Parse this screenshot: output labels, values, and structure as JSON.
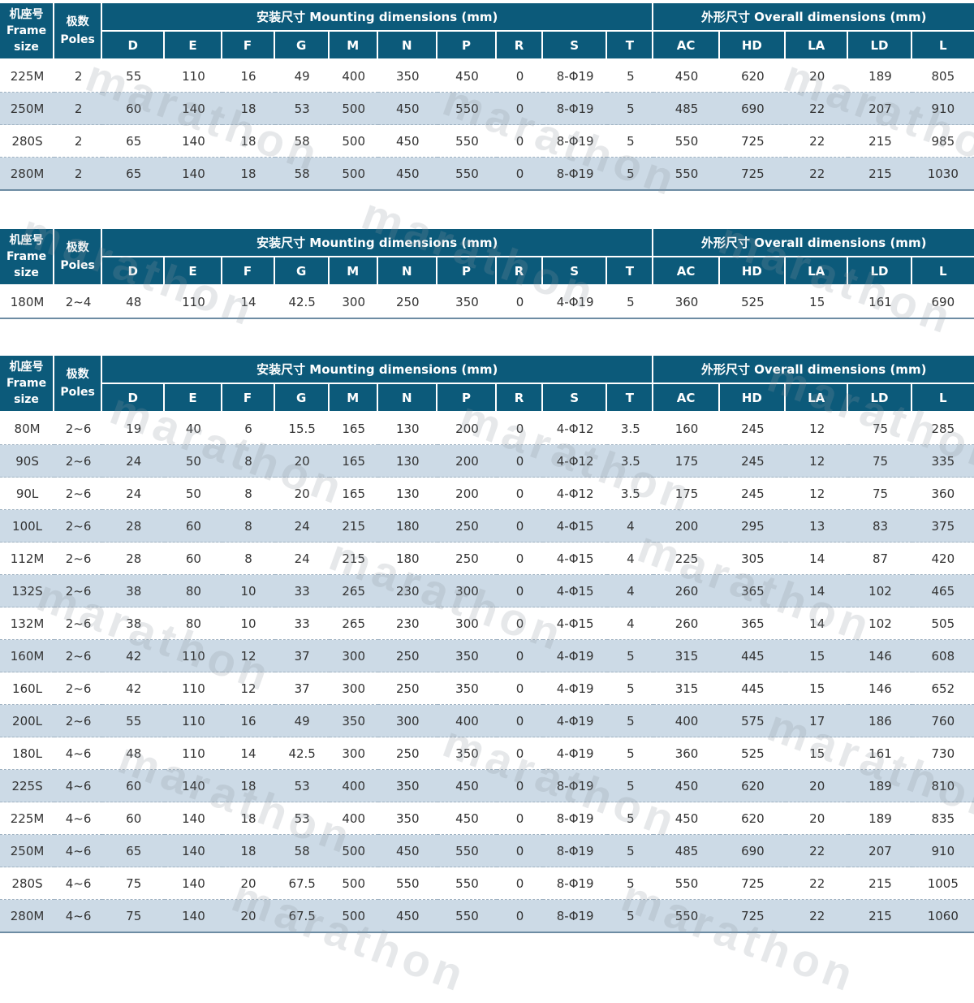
{
  "header": {
    "frame_cn": "机座号",
    "frame_en_1": "Frame",
    "frame_en_2": "size",
    "poles_cn": "极数",
    "poles_en": "Poles",
    "mounting_group": "安装尺寸 Mounting dimensions (mm)",
    "overall_group": "外形尺寸 Overall dimensions (mm)",
    "columns": [
      "D",
      "E",
      "F",
      "G",
      "M",
      "N",
      "P",
      "R",
      "S",
      "T",
      "AC",
      "HD",
      "LA",
      "LD",
      "L"
    ]
  },
  "tables": [
    {
      "rows": [
        [
          "225M",
          "2",
          "55",
          "110",
          "16",
          "49",
          "400",
          "350",
          "450",
          "0",
          "8-Φ19",
          "5",
          "450",
          "620",
          "20",
          "189",
          "805"
        ],
        [
          "250M",
          "2",
          "60",
          "140",
          "18",
          "53",
          "500",
          "450",
          "550",
          "0",
          "8-Φ19",
          "5",
          "485",
          "690",
          "22",
          "207",
          "910"
        ],
        [
          "280S",
          "2",
          "65",
          "140",
          "18",
          "58",
          "500",
          "450",
          "550",
          "0",
          "8-Φ19",
          "5",
          "550",
          "725",
          "22",
          "215",
          "985"
        ],
        [
          "280M",
          "2",
          "65",
          "140",
          "18",
          "58",
          "500",
          "450",
          "550",
          "0",
          "8-Φ19",
          "5",
          "550",
          "725",
          "22",
          "215",
          "1030"
        ]
      ]
    },
    {
      "rows": [
        [
          "180M",
          "2~4",
          "48",
          "110",
          "14",
          "42.5",
          "300",
          "250",
          "350",
          "0",
          "4-Φ19",
          "5",
          "360",
          "525",
          "15",
          "161",
          "690"
        ]
      ]
    },
    {
      "rows": [
        [
          "80M",
          "2~6",
          "19",
          "40",
          "6",
          "15.5",
          "165",
          "130",
          "200",
          "0",
          "4-Φ12",
          "3.5",
          "160",
          "245",
          "12",
          "75",
          "285"
        ],
        [
          "90S",
          "2~6",
          "24",
          "50",
          "8",
          "20",
          "165",
          "130",
          "200",
          "0",
          "4-Φ12",
          "3.5",
          "175",
          "245",
          "12",
          "75",
          "335"
        ],
        [
          "90L",
          "2~6",
          "24",
          "50",
          "8",
          "20",
          "165",
          "130",
          "200",
          "0",
          "4-Φ12",
          "3.5",
          "175",
          "245",
          "12",
          "75",
          "360"
        ],
        [
          "100L",
          "2~6",
          "28",
          "60",
          "8",
          "24",
          "215",
          "180",
          "250",
          "0",
          "4-Φ15",
          "4",
          "200",
          "295",
          "13",
          "83",
          "375"
        ],
        [
          "112M",
          "2~6",
          "28",
          "60",
          "8",
          "24",
          "215",
          "180",
          "250",
          "0",
          "4-Φ15",
          "4",
          "225",
          "305",
          "14",
          "87",
          "420"
        ],
        [
          "132S",
          "2~6",
          "38",
          "80",
          "10",
          "33",
          "265",
          "230",
          "300",
          "0",
          "4-Φ15",
          "4",
          "260",
          "365",
          "14",
          "102",
          "465"
        ],
        [
          "132M",
          "2~6",
          "38",
          "80",
          "10",
          "33",
          "265",
          "230",
          "300",
          "0",
          "4-Φ15",
          "4",
          "260",
          "365",
          "14",
          "102",
          "505"
        ],
        [
          "160M",
          "2~6",
          "42",
          "110",
          "12",
          "37",
          "300",
          "250",
          "350",
          "0",
          "4-Φ19",
          "5",
          "315",
          "445",
          "15",
          "146",
          "608"
        ],
        [
          "160L",
          "2~6",
          "42",
          "110",
          "12",
          "37",
          "300",
          "250",
          "350",
          "0",
          "4-Φ19",
          "5",
          "315",
          "445",
          "15",
          "146",
          "652"
        ],
        [
          "200L",
          "2~6",
          "55",
          "110",
          "16",
          "49",
          "350",
          "300",
          "400",
          "0",
          "4-Φ19",
          "5",
          "400",
          "575",
          "17",
          "186",
          "760"
        ],
        [
          "180L",
          "4~6",
          "48",
          "110",
          "14",
          "42.5",
          "300",
          "250",
          "350",
          "0",
          "4-Φ19",
          "5",
          "360",
          "525",
          "15",
          "161",
          "730"
        ],
        [
          "225S",
          "4~6",
          "60",
          "140",
          "18",
          "53",
          "400",
          "350",
          "450",
          "0",
          "8-Φ19",
          "5",
          "450",
          "620",
          "20",
          "189",
          "810"
        ],
        [
          "225M",
          "4~6",
          "60",
          "140",
          "18",
          "53",
          "400",
          "350",
          "450",
          "0",
          "8-Φ19",
          "5",
          "450",
          "620",
          "20",
          "189",
          "835"
        ],
        [
          "250M",
          "4~6",
          "65",
          "140",
          "18",
          "58",
          "500",
          "450",
          "550",
          "0",
          "8-Φ19",
          "5",
          "485",
          "690",
          "22",
          "207",
          "910"
        ],
        [
          "280S",
          "4~6",
          "75",
          "140",
          "20",
          "67.5",
          "500",
          "550",
          "550",
          "0",
          "8-Φ19",
          "5",
          "550",
          "725",
          "22",
          "215",
          "1005"
        ],
        [
          "280M",
          "4~6",
          "75",
          "140",
          "20",
          "67.5",
          "500",
          "450",
          "550",
          "0",
          "8-Φ19",
          "5",
          "550",
          "725",
          "22",
          "215",
          "1060"
        ]
      ]
    }
  ],
  "watermark": {
    "text": "marathon",
    "color": "#8c96a0"
  }
}
